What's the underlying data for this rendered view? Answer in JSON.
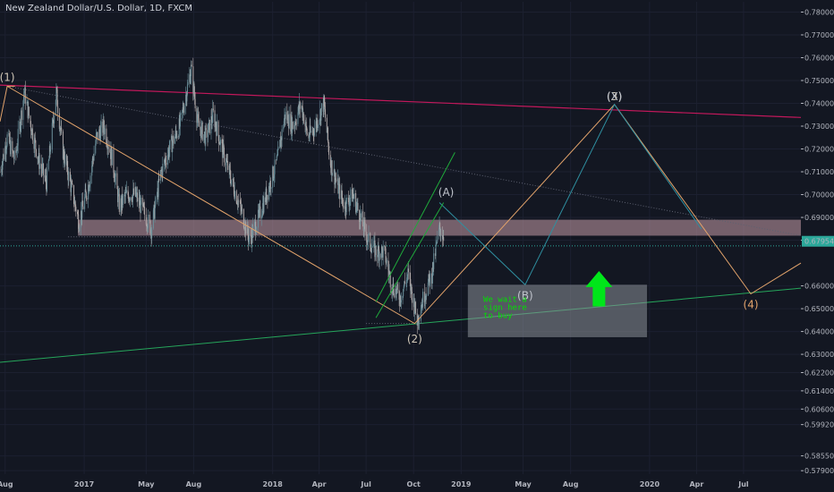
{
  "title": "New Zealand Dollar/U.S. Dollar, 1D, FXCM",
  "colors": {
    "background": "#131722",
    "up_candle": "#6a8f9a",
    "down_candle": "#b0a8a8",
    "resistance_line": "#c2185b",
    "support_line": "#26a65b",
    "wave_line": "#e2a36b",
    "corrective_line": "#2f8fa0",
    "channel_line": "#1faa3b",
    "zone_fill": "#c79ca8",
    "box_fill": "#8a8f98",
    "note_text": "#00e000",
    "arrow": "#00e61a",
    "last_price_bg": "#2ba89a"
  },
  "chart_data": {
    "type": "line",
    "symbol": "NZDUSD",
    "timeframe": "1D",
    "source": "FXCM",
    "x_range": [
      "2016-07-22",
      "2020-10-20"
    ],
    "y_range": [
      0.5775,
      0.7845
    ],
    "ytick_labels": [
      "0.78000",
      "0.77000",
      "0.76000",
      "0.75000",
      "0.74000",
      "0.73000",
      "0.72000",
      "0.71000",
      "0.70000",
      "0.69000",
      "0.68000",
      "0.67954",
      "0.66000",
      "0.65000",
      "0.64000",
      "0.63000",
      "0.62200",
      "0.61400",
      "0.60600",
      "0.59920",
      "0.58550",
      "0.57900"
    ],
    "ytick_values": [
      0.78,
      0.77,
      0.76,
      0.75,
      0.74,
      0.73,
      0.72,
      0.71,
      0.7,
      0.69,
      0.68,
      0.67954,
      0.66,
      0.65,
      0.64,
      0.63,
      0.622,
      0.614,
      0.606,
      0.5992,
      0.5855,
      0.579
    ],
    "last_price": 0.67954,
    "xtick_labels": [
      {
        "label": "Aug",
        "date": "2016-08-01"
      },
      {
        "label": "2017",
        "date": "2017-01-01"
      },
      {
        "label": "May",
        "date": "2017-05-01"
      },
      {
        "label": "Aug",
        "date": "2017-08-01"
      },
      {
        "label": "2018",
        "date": "2018-01-01"
      },
      {
        "label": "Apr",
        "date": "2018-04-01"
      },
      {
        "label": "Jul",
        "date": "2018-07-01"
      },
      {
        "label": "Oct",
        "date": "2018-10-01"
      },
      {
        "label": "2019",
        "date": "2019-01-01"
      },
      {
        "label": "May",
        "date": "2019-05-01"
      },
      {
        "label": "Aug",
        "date": "2019-08-01"
      },
      {
        "label": "2020",
        "date": "2020-01-01"
      },
      {
        "label": "Apr",
        "date": "2020-04-01"
      },
      {
        "label": "Jul",
        "date": "2020-07-01"
      }
    ],
    "price_path": [
      {
        "date": "2016-07-22",
        "value": 0.71
      },
      {
        "date": "2016-08-05",
        "value": 0.725
      },
      {
        "date": "2016-08-20",
        "value": 0.715
      },
      {
        "date": "2016-09-07",
        "value": 0.745
      },
      {
        "date": "2016-09-20",
        "value": 0.73
      },
      {
        "date": "2016-10-05",
        "value": 0.715
      },
      {
        "date": "2016-10-20",
        "value": 0.705
      },
      {
        "date": "2016-11-08",
        "value": 0.745
      },
      {
        "date": "2016-11-20",
        "value": 0.72
      },
      {
        "date": "2016-12-05",
        "value": 0.705
      },
      {
        "date": "2016-12-22",
        "value": 0.688
      },
      {
        "date": "2017-01-10",
        "value": 0.705
      },
      {
        "date": "2017-01-25",
        "value": 0.725
      },
      {
        "date": "2017-02-08",
        "value": 0.73
      },
      {
        "date": "2017-02-25",
        "value": 0.715
      },
      {
        "date": "2017-03-10",
        "value": 0.695
      },
      {
        "date": "2017-03-25",
        "value": 0.7
      },
      {
        "date": "2017-04-10",
        "value": 0.7
      },
      {
        "date": "2017-05-01",
        "value": 0.69
      },
      {
        "date": "2017-05-11",
        "value": 0.685
      },
      {
        "date": "2017-05-30",
        "value": 0.71
      },
      {
        "date": "2017-06-15",
        "value": 0.72
      },
      {
        "date": "2017-07-05",
        "value": 0.73
      },
      {
        "date": "2017-07-27",
        "value": 0.755
      },
      {
        "date": "2017-08-10",
        "value": 0.73
      },
      {
        "date": "2017-08-25",
        "value": 0.725
      },
      {
        "date": "2017-09-08",
        "value": 0.735
      },
      {
        "date": "2017-09-25",
        "value": 0.72
      },
      {
        "date": "2017-10-15",
        "value": 0.705
      },
      {
        "date": "2017-11-05",
        "value": 0.69
      },
      {
        "date": "2017-11-17",
        "value": 0.68
      },
      {
        "date": "2017-12-05",
        "value": 0.69
      },
      {
        "date": "2017-12-20",
        "value": 0.7
      },
      {
        "date": "2018-01-10",
        "value": 0.715
      },
      {
        "date": "2018-01-25",
        "value": 0.735
      },
      {
        "date": "2018-02-10",
        "value": 0.73
      },
      {
        "date": "2018-02-25",
        "value": 0.74
      },
      {
        "date": "2018-03-10",
        "value": 0.725
      },
      {
        "date": "2018-03-25",
        "value": 0.73
      },
      {
        "date": "2018-04-10",
        "value": 0.74
      },
      {
        "date": "2018-04-22",
        "value": 0.715
      },
      {
        "date": "2018-05-05",
        "value": 0.705
      },
      {
        "date": "2018-05-20",
        "value": 0.695
      },
      {
        "date": "2018-06-05",
        "value": 0.7
      },
      {
        "date": "2018-06-20",
        "value": 0.69
      },
      {
        "date": "2018-07-05",
        "value": 0.68
      },
      {
        "date": "2018-07-20",
        "value": 0.675
      },
      {
        "date": "2018-08-05",
        "value": 0.675
      },
      {
        "date": "2018-08-20",
        "value": 0.66
      },
      {
        "date": "2018-09-05",
        "value": 0.655
      },
      {
        "date": "2018-09-20",
        "value": 0.665
      },
      {
        "date": "2018-10-08",
        "value": 0.645
      },
      {
        "date": "2018-10-20",
        "value": 0.655
      },
      {
        "date": "2018-11-05",
        "value": 0.665
      },
      {
        "date": "2018-11-20",
        "value": 0.685
      },
      {
        "date": "2018-11-28",
        "value": 0.682
      }
    ],
    "annotations": [
      {
        "label": "(1)",
        "date": "2016-08-05",
        "value": 0.7475,
        "color": "#d1c8b8"
      },
      {
        "label": "(2)",
        "date": "2018-10-03",
        "value": 0.6415,
        "color": "#d1c8b8"
      },
      {
        "label": "(A)",
        "date": "2018-12-03",
        "value": 0.6975,
        "color": "#c0c4cc"
      },
      {
        "label": "(B)",
        "date": "2019-05-05",
        "value": 0.6605,
        "color": "#c0c4cc"
      },
      {
        "label": "(3)",
        "date": "2019-10-25",
        "value": 0.7395,
        "color": "#d1c8b8"
      },
      {
        "label": "(X)",
        "date": "2019-10-25",
        "value": 0.7395,
        "color": "#c0c4cc"
      },
      {
        "label": "(4)",
        "date": "2020-07-15",
        "value": 0.6565,
        "color": "#e2a36b"
      }
    ],
    "note": [
      "We wait a",
      "sign here",
      "to buy"
    ]
  }
}
